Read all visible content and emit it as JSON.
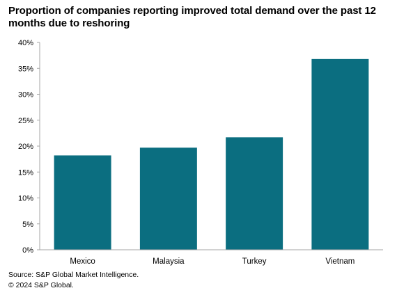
{
  "chart_data": {
    "type": "bar",
    "title": "Proportion of companies  reporting improved total demand over the past 12 months due to reshoring",
    "categories": [
      "Mexico",
      "Malaysia",
      "Turkey",
      "Vietnam"
    ],
    "values": [
      18.2,
      19.7,
      21.7,
      36.8
    ],
    "value_unit": "percent",
    "ylim": [
      0,
      40
    ],
    "yticks": [
      0,
      5,
      10,
      15,
      20,
      25,
      30,
      35,
      40
    ],
    "ytick_labels": [
      "0%",
      "5%",
      "10%",
      "15%",
      "20%",
      "25%",
      "30%",
      "35%",
      "40%"
    ],
    "xlabel": "",
    "ylabel": "",
    "grid": false,
    "legend": "none",
    "bar_color": "#0b6e80",
    "axis_color": "#a6a6a6"
  },
  "footer": {
    "source": "Source: S&P Global Market Intelligence.",
    "copyright": "© 2024 S&P Global."
  }
}
